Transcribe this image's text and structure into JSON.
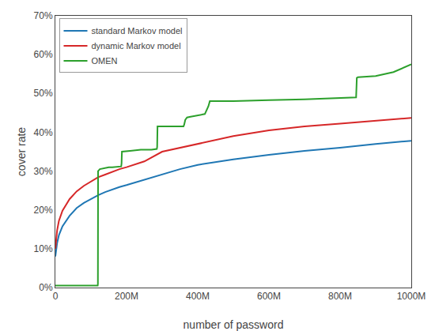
{
  "chart_data": {
    "type": "line",
    "xlabel": "number of password",
    "ylabel": "cover rate",
    "xlim": [
      0,
      1000000000
    ],
    "ylim": [
      0,
      0.7
    ],
    "xticks": [
      0,
      {
        "value": 200000000,
        "label": "200M"
      },
      {
        "value": 400000000,
        "label": "400M"
      },
      {
        "value": 600000000,
        "label": "600M"
      },
      {
        "value": 800000000,
        "label": "800M"
      },
      {
        "value": 1000000000,
        "label": "1000M"
      }
    ],
    "yticks": [
      {
        "value": 0,
        "label": "0%"
      },
      {
        "value": 0.1,
        "label": "10%"
      },
      {
        "value": 0.2,
        "label": "20%"
      },
      {
        "value": 0.3,
        "label": "30%"
      },
      {
        "value": 0.4,
        "label": "40%"
      },
      {
        "value": 0.5,
        "label": "50%"
      },
      {
        "value": 0.6,
        "label": "60%"
      },
      {
        "value": 0.7,
        "label": "70%"
      }
    ],
    "grid": false,
    "legend": "upper left",
    "series": [
      {
        "name": "standard Markov model",
        "color": "#1f77b4",
        "x": [
          0,
          5000000,
          10000000,
          20000000,
          40000000,
          60000000,
          80000000,
          100000000,
          120000000,
          140000000,
          160000000,
          180000000,
          200000000,
          250000000,
          300000000,
          350000000,
          400000000,
          500000000,
          600000000,
          700000000,
          800000000,
          900000000,
          1000000000
        ],
        "values": [
          0.08,
          0.115,
          0.135,
          0.158,
          0.185,
          0.205,
          0.218,
          0.228,
          0.238,
          0.246,
          0.253,
          0.259,
          0.264,
          0.278,
          0.292,
          0.305,
          0.316,
          0.33,
          0.342,
          0.352,
          0.36,
          0.37,
          0.378
        ]
      },
      {
        "name": "dynamic Markov model",
        "color": "#d62728",
        "x": [
          0,
          5000000,
          10000000,
          20000000,
          40000000,
          60000000,
          80000000,
          100000000,
          120000000,
          140000000,
          160000000,
          180000000,
          200000000,
          250000000,
          300000000,
          350000000,
          400000000,
          500000000,
          600000000,
          700000000,
          800000000,
          900000000,
          1000000000
        ],
        "values": [
          0.1,
          0.148,
          0.172,
          0.198,
          0.228,
          0.248,
          0.262,
          0.273,
          0.284,
          0.291,
          0.298,
          0.305,
          0.31,
          0.325,
          0.35,
          0.36,
          0.37,
          0.39,
          0.405,
          0.415,
          0.422,
          0.43,
          0.437
        ]
      },
      {
        "name": "OMEN",
        "color": "#2ca02c",
        "x": [
          0,
          50000000,
          100000000,
          119000000,
          119500000,
          120000000,
          125000000,
          150000000,
          160000000,
          175000000,
          185000000,
          186000000,
          187000000,
          210000000,
          240000000,
          270000000,
          285000000,
          286000000,
          287000000,
          360000000,
          362000000,
          365000000,
          370000000,
          380000000,
          400000000,
          420000000,
          430000000,
          432000000,
          434000000,
          500000000,
          550000000,
          600000000,
          700000000,
          800000000,
          845000000,
          847000000,
          850000000,
          900000000,
          950000000,
          1000000000
        ],
        "values": [
          0.005,
          0.005,
          0.005,
          0.005,
          0.01,
          0.3,
          0.305,
          0.31,
          0.31,
          0.312,
          0.312,
          0.32,
          0.35,
          0.352,
          0.355,
          0.355,
          0.357,
          0.362,
          0.415,
          0.415,
          0.42,
          0.432,
          0.438,
          0.44,
          0.443,
          0.447,
          0.467,
          0.478,
          0.48,
          0.48,
          0.482,
          0.483,
          0.485,
          0.488,
          0.49,
          0.54,
          0.542,
          0.545,
          0.555,
          0.575
        ]
      }
    ]
  }
}
